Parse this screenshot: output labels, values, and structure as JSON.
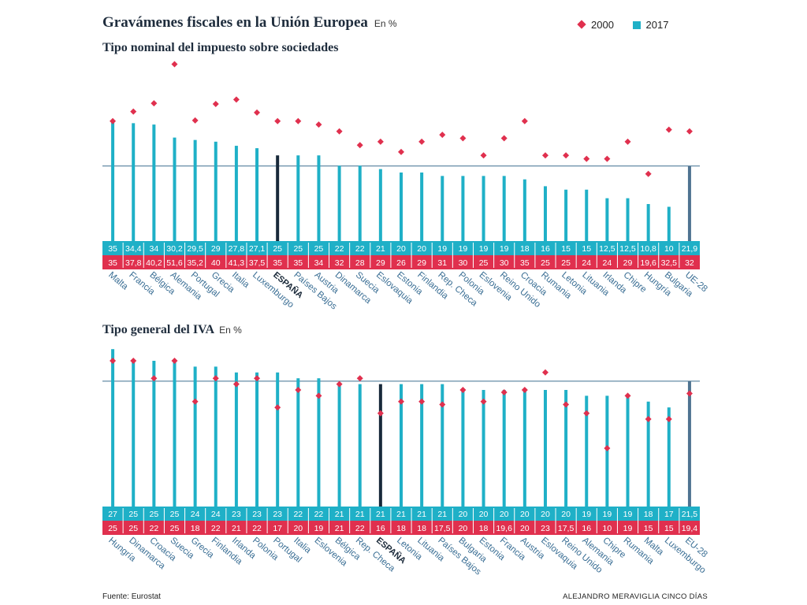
{
  "title": "Gravámenes fiscales en la Unión Europea",
  "title_unit": "En %",
  "legend": {
    "items": [
      {
        "label": "2000",
        "color": "#e0304e"
      },
      {
        "label": "2017",
        "color": "#1fb0c7"
      }
    ]
  },
  "colors": {
    "bar": "#1fb0c7",
    "bar_spain": "#18293a",
    "bar_eu": "#4f7391",
    "marker": "#e0304e",
    "row2017": "#1fb0c7",
    "row2000": "#e0304e",
    "reference_line": "#3f6f8f"
  },
  "chart_data": [
    {
      "type": "bar",
      "title": "Tipo nominal del impuesto sobre sociedades",
      "unit_label": "",
      "categories": [
        "Malta",
        "Francia",
        "Bélgica",
        "Alemania",
        "Portugal",
        "Grecia",
        "Italia",
        "Luxemburgo",
        "ESPAÑA",
        "Países Bajos",
        "Austria",
        "Dinamarca",
        "Suecia",
        "Eslovaquia",
        "Estonia",
        "Finlandia",
        "Rep. Checa",
        "Polonia",
        "Eslovenia",
        "Reino Unido",
        "Croacia",
        "Rumania",
        "Letonia",
        "Lituania",
        "Irlanda",
        "Chipre",
        "Hungría",
        "Bulgaria",
        "UE-28"
      ],
      "series": [
        {
          "name": "2017",
          "values": [
            "35",
            "34,4",
            "34",
            "30,2",
            "29,5",
            "29",
            "27,8",
            "27,1",
            "25",
            "25",
            "25",
            "22",
            "22",
            "21",
            "20",
            "20",
            "19",
            "19",
            "19",
            "19",
            "18",
            "16",
            "15",
            "15",
            "12,5",
            "12,5",
            "10,8",
            "10",
            "21,9"
          ]
        },
        {
          "name": "2000",
          "values": [
            "35",
            "37,8",
            "40,2",
            "51,6",
            "35,2",
            "40",
            "41,3",
            "37,5",
            "35",
            "35",
            "34",
            "32",
            "28",
            "29",
            "26",
            "29",
            "31",
            "30",
            "25",
            "30",
            "35",
            "25",
            "25",
            "24",
            "24",
            "29",
            "19,6",
            "32,5",
            "32"
          ]
        }
      ],
      "highlight": "ESPAÑA",
      "aggregate": "UE-28"
    },
    {
      "type": "bar",
      "title": "Tipo general del IVA",
      "unit_label": "En %",
      "categories": [
        "Hungría",
        "Dinamarca",
        "Croacia",
        "Suecia",
        "Grecia",
        "Finlandia",
        "Irlanda",
        "Polonia",
        "Portugal",
        "Italia",
        "Eslovenia",
        "Bélgica",
        "Rep. Checa",
        "ESPAÑA",
        "Letonia",
        "Lituania",
        "Países Bajos",
        "Bulgaria",
        "Estonia",
        "Francia",
        "Austria",
        "Eslovaquia",
        "Reino Unido",
        "Alemania",
        "Chipre",
        "Rumania",
        "Malta",
        "Luxemburgo",
        "EU-28"
      ],
      "series": [
        {
          "name": "2017",
          "values": [
            "27",
            "25",
            "25",
            "25",
            "24",
            "24",
            "23",
            "23",
            "23",
            "22",
            "22",
            "21",
            "21",
            "21",
            "21",
            "21",
            "21",
            "20",
            "20",
            "20",
            "20",
            "20",
            "20",
            "19",
            "19",
            "19",
            "18",
            "17",
            "21,5"
          ]
        },
        {
          "name": "2000",
          "values": [
            "25",
            "25",
            "22",
            "25",
            "18",
            "22",
            "21",
            "22",
            "17",
            "20",
            "19",
            "21",
            "22",
            "16",
            "18",
            "18",
            "17,5",
            "20",
            "18",
            "19,6",
            "20",
            "23",
            "17,5",
            "16",
            "10",
            "19",
            "15",
            "15",
            "19,4"
          ]
        }
      ],
      "highlight": "ESPAÑA",
      "aggregate": "EU-28"
    }
  ],
  "footer": {
    "source": "Fuente: Eurostat",
    "credit": "ALEJANDRO MERAVIGLIA CINCO DÍAS"
  }
}
